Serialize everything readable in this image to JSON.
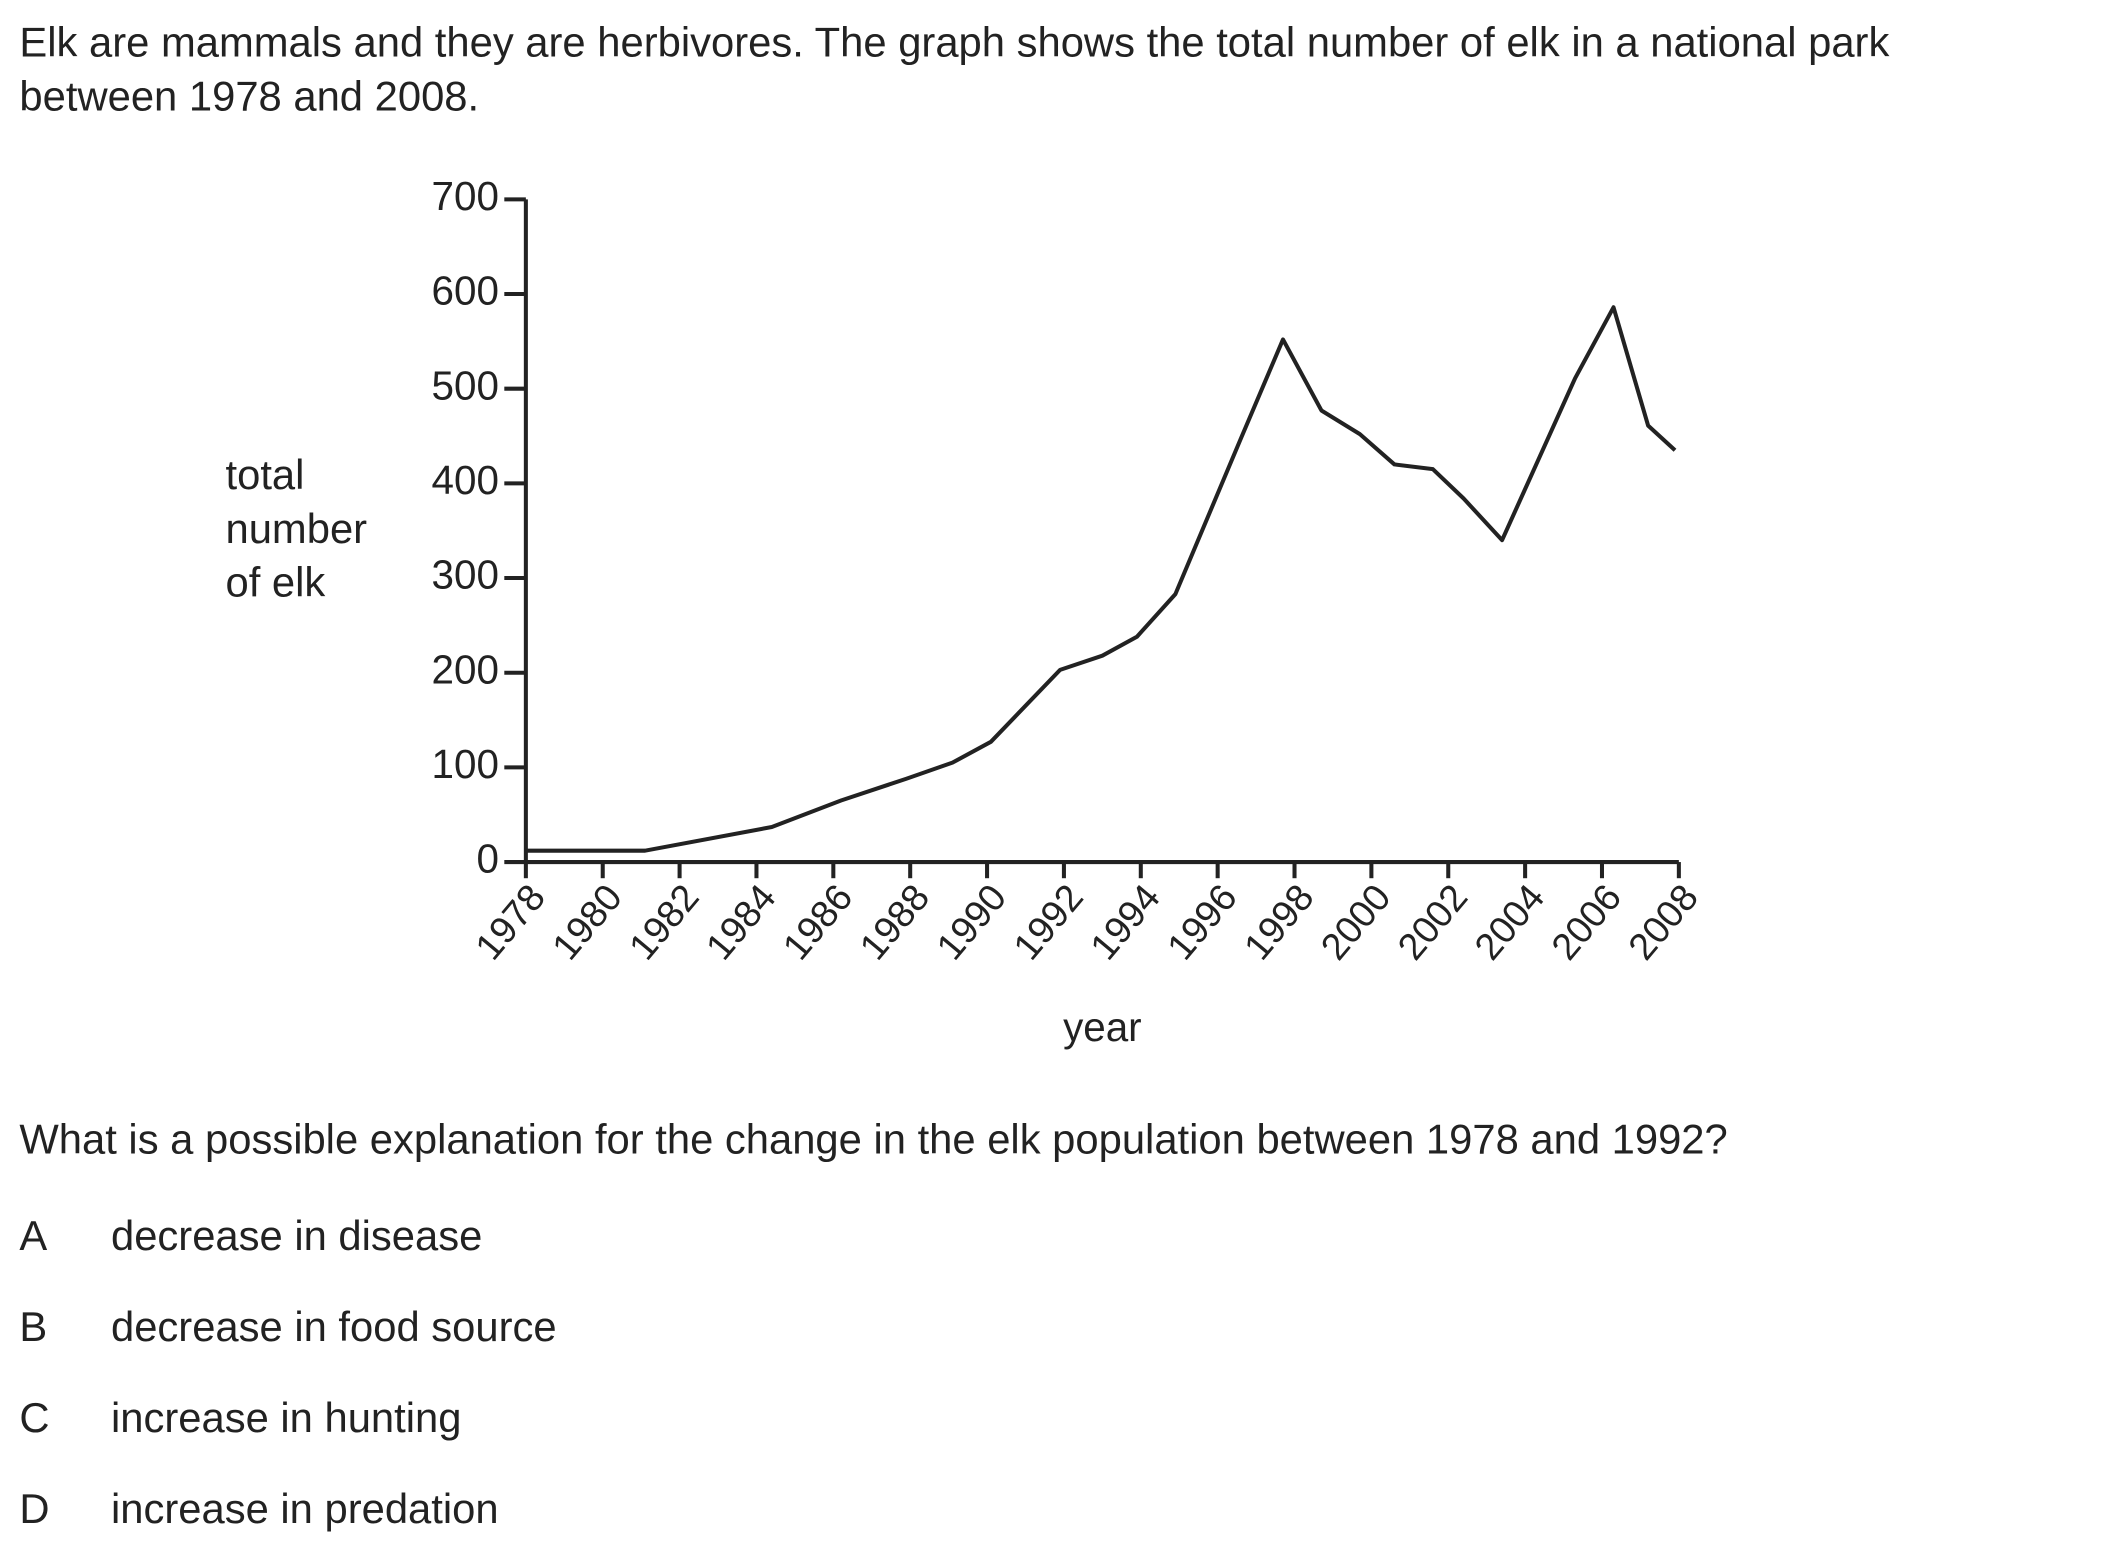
{
  "question": {
    "intro": "Elk are mammals and they are herbivores. The graph shows the total number of elk in a national park between 1978 and 2008.",
    "prompt": "What is a possible explanation for the change in the elk population between 1978 and 1992?",
    "options": [
      {
        "letter": "A",
        "text": "decrease in disease"
      },
      {
        "letter": "B",
        "text": "decrease in food source"
      },
      {
        "letter": "C",
        "text": "increase in hunting"
      },
      {
        "letter": "D",
        "text": "increase in predation"
      }
    ]
  },
  "chart_data": {
    "type": "line",
    "xlabel": "year",
    "ylabel": "total number of elk",
    "color": "#222222",
    "x": [
      1978,
      1981.1,
      1984.4,
      1986.2,
      1987.9,
      1989.1,
      1990.1,
      1991.9,
      1993.0,
      1993.9,
      1994.9,
      1996.6,
      1997.7,
      1998.7,
      1999.7,
      2000.6,
      2001.6,
      2002.4,
      2003.4,
      2005.3,
      2006.3,
      2007.2,
      2007.9
    ],
    "values": [
      12,
      12,
      37,
      65,
      88,
      105,
      127,
      203,
      218,
      238,
      283,
      447,
      552,
      477,
      452,
      420,
      415,
      384,
      340,
      511,
      586,
      461,
      435
    ],
    "xlim": [
      1978,
      2008
    ],
    "xticks": [
      1978,
      1980,
      1982,
      1984,
      1986,
      1988,
      1990,
      1992,
      1994,
      1996,
      1998,
      2000,
      2002,
      2004,
      2006,
      2008
    ],
    "ylim": [
      0,
      700
    ],
    "yticks": [
      0,
      100,
      200,
      300,
      400,
      500,
      600,
      700
    ]
  }
}
